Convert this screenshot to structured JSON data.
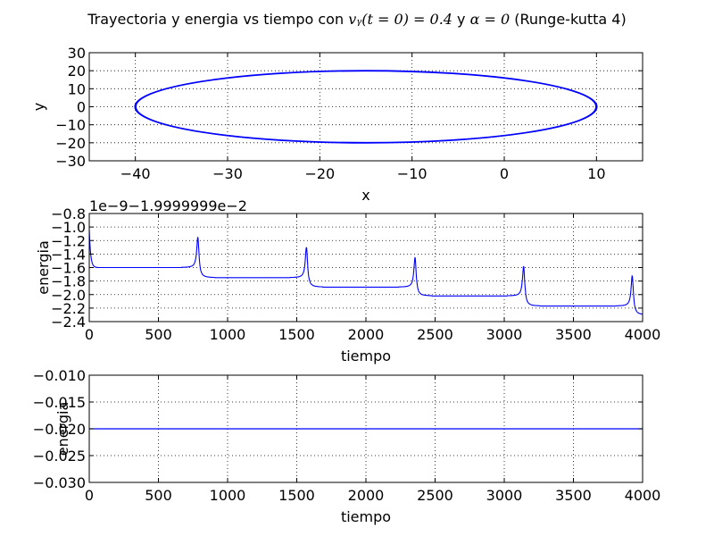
{
  "figure": {
    "title_prefix": "Trayectoria y energia vs tiempo con ",
    "title_math_1": "vᵧ(t = 0) = 0.4",
    "title_mid": " y  ",
    "title_math_2": "α = 0",
    "title_suffix": " (Runge-kutta 4)"
  },
  "chart_data": [
    {
      "type": "line",
      "xlabel": "x",
      "ylabel": "y",
      "xlim": [
        -45,
        15
      ],
      "ylim": [
        -30,
        30
      ],
      "xticks": [
        -40,
        -30,
        -20,
        -10,
        0,
        10
      ],
      "xtick_labels": [
        "−40",
        "−30",
        "−20",
        "−10",
        "0",
        "10"
      ],
      "yticks": [
        -30,
        -20,
        -10,
        0,
        10,
        20,
        30
      ],
      "ytick_labels": [
        "−30",
        "−20",
        "−10",
        "0",
        "10",
        "20",
        "30"
      ],
      "grid": true,
      "color": "#0000ff",
      "shape": "ellipse",
      "center": [
        -15,
        0
      ],
      "semi_axes": [
        25,
        20
      ]
    },
    {
      "type": "line",
      "xlabel": "tiempo",
      "ylabel": "energia",
      "offset_text": "1e−9−1.9999999e−2",
      "xlim": [
        0,
        4000
      ],
      "ylim": [
        -2.4,
        -0.8
      ],
      "xticks": [
        0,
        500,
        1000,
        1500,
        2000,
        2500,
        3000,
        3500,
        4000
      ],
      "xtick_labels": [
        "0",
        "500",
        "1000",
        "1500",
        "2000",
        "2500",
        "3000",
        "3500",
        "4000"
      ],
      "yticks": [
        -2.4,
        -2.2,
        -2.0,
        -1.8,
        -1.6,
        -1.4,
        -1.2,
        -1.0,
        -0.8
      ],
      "ytick_labels": [
        "−2.4",
        "−2.2",
        "−2.0",
        "−1.8",
        "−1.6",
        "−1.4",
        "−1.2",
        "−1.0",
        "−0.8"
      ],
      "grid": true,
      "color": "#0000ff",
      "start_value": -1.02,
      "plateaus": [
        -1.6,
        -1.75,
        -1.89,
        -2.02,
        -2.17,
        -2.3
      ],
      "spikes": [
        {
          "t": 785,
          "peak": -1.15
        },
        {
          "t": 1570,
          "peak": -1.3
        },
        {
          "t": 2355,
          "peak": -1.45
        },
        {
          "t": 3140,
          "peak": -1.58
        },
        {
          "t": 3925,
          "peak": -1.72
        }
      ]
    },
    {
      "type": "line",
      "xlabel": "tiempo",
      "ylabel": "energia",
      "xlim": [
        0,
        4000
      ],
      "ylim": [
        -0.03,
        -0.01
      ],
      "xticks": [
        0,
        500,
        1000,
        1500,
        2000,
        2500,
        3000,
        3500,
        4000
      ],
      "xtick_labels": [
        "0",
        "500",
        "1000",
        "1500",
        "2000",
        "2500",
        "3000",
        "3500",
        "4000"
      ],
      "yticks": [
        -0.03,
        -0.025,
        -0.02,
        -0.015,
        -0.01
      ],
      "ytick_labels": [
        "−0.030",
        "−0.025",
        "−0.020",
        "−0.015",
        "−0.010"
      ],
      "grid": true,
      "color": "#0000ff",
      "constant_value": -0.02
    }
  ]
}
